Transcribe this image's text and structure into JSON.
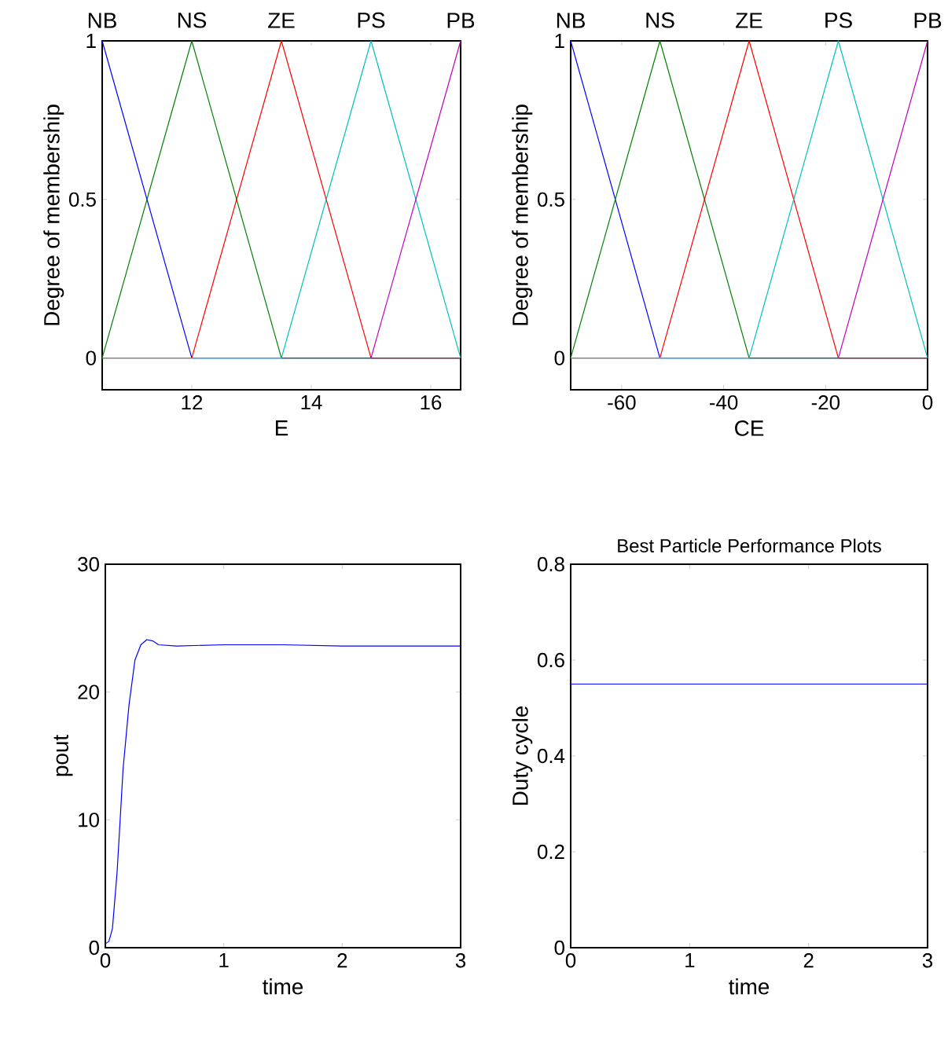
{
  "chart_data": [
    {
      "type": "line",
      "xlabel": "E",
      "ylabel": "Degree of membership",
      "xlim": [
        10.5,
        16.5
      ],
      "ylim": [
        -0.1,
        1
      ],
      "xticks": [
        12,
        14,
        16
      ],
      "yticks": [
        0,
        0.5,
        1
      ],
      "series": [
        {
          "name": "NB",
          "color": "#0000ff",
          "x": [
            10.5,
            12,
            16.5
          ],
          "values": [
            1,
            0,
            0
          ]
        },
        {
          "name": "NS",
          "color": "#008000",
          "x": [
            10.5,
            12,
            13.5,
            16.5
          ],
          "values": [
            0,
            1,
            0,
            0
          ]
        },
        {
          "name": "ZE",
          "color": "#ff0000",
          "x": [
            10.5,
            12,
            13.5,
            15,
            16.5
          ],
          "values": [
            0,
            0,
            1,
            0,
            0
          ]
        },
        {
          "name": "PS",
          "color": "#00bfbf",
          "x": [
            10.5,
            13.5,
            15,
            16.5
          ],
          "values": [
            0,
            0,
            1,
            0
          ]
        },
        {
          "name": "PB",
          "color": "#bf00bf",
          "x": [
            15,
            16.5
          ],
          "values": [
            0,
            1
          ]
        }
      ]
    },
    {
      "type": "line",
      "xlabel": "CE",
      "ylabel": "Degree of membership",
      "xlim": [
        -70,
        0
      ],
      "ylim": [
        -0.1,
        1
      ],
      "xticks": [
        -60,
        -40,
        -20,
        0
      ],
      "yticks": [
        0,
        0.5,
        1
      ],
      "series": [
        {
          "name": "NB",
          "color": "#0000ff",
          "x": [
            -70,
            -52.5,
            0
          ],
          "values": [
            1,
            0,
            0
          ]
        },
        {
          "name": "NS",
          "color": "#008000",
          "x": [
            -70,
            -52.5,
            -35,
            0
          ],
          "values": [
            0,
            1,
            0,
            0
          ]
        },
        {
          "name": "ZE",
          "color": "#ff0000",
          "x": [
            -70,
            -52.5,
            -35,
            -17.5,
            0
          ],
          "values": [
            0,
            0,
            1,
            0,
            0
          ]
        },
        {
          "name": "PS",
          "color": "#00bfbf",
          "x": [
            -70,
            -35,
            -17.5,
            0
          ],
          "values": [
            0,
            0,
            1,
            0
          ]
        },
        {
          "name": "PB",
          "color": "#bf00bf",
          "x": [
            -17.5,
            0
          ],
          "values": [
            0,
            1
          ]
        }
      ]
    },
    {
      "type": "line",
      "xlabel": "time",
      "ylabel": "pout",
      "xlim": [
        0,
        3
      ],
      "ylim": [
        0,
        30
      ],
      "xticks": [
        0,
        1,
        2,
        3
      ],
      "yticks": [
        0,
        10,
        20,
        30
      ],
      "series": [
        {
          "color": "#0000ff",
          "x": [
            0,
            0.03,
            0.06,
            0.1,
            0.15,
            0.2,
            0.25,
            0.3,
            0.35,
            0.4,
            0.45,
            0.6,
            1,
            1.5,
            2,
            2.5,
            3
          ],
          "values": [
            0.3,
            0.5,
            1.5,
            6,
            14,
            19,
            22.5,
            23.7,
            24.1,
            24,
            23.7,
            23.6,
            23.7,
            23.7,
            23.6,
            23.6,
            23.6
          ]
        }
      ]
    },
    {
      "type": "line",
      "title": "Best Particle Performance Plots",
      "xlabel": "time",
      "ylabel": "Duty cycle",
      "xlim": [
        0,
        3
      ],
      "ylim": [
        0,
        0.8
      ],
      "xticks": [
        0,
        1,
        2,
        3
      ],
      "yticks": [
        0,
        0.2,
        0.4,
        0.6,
        0.8
      ],
      "series": [
        {
          "color": "#0000ff",
          "x": [
            0,
            3
          ],
          "values": [
            0.55,
            0.55
          ]
        }
      ]
    }
  ]
}
